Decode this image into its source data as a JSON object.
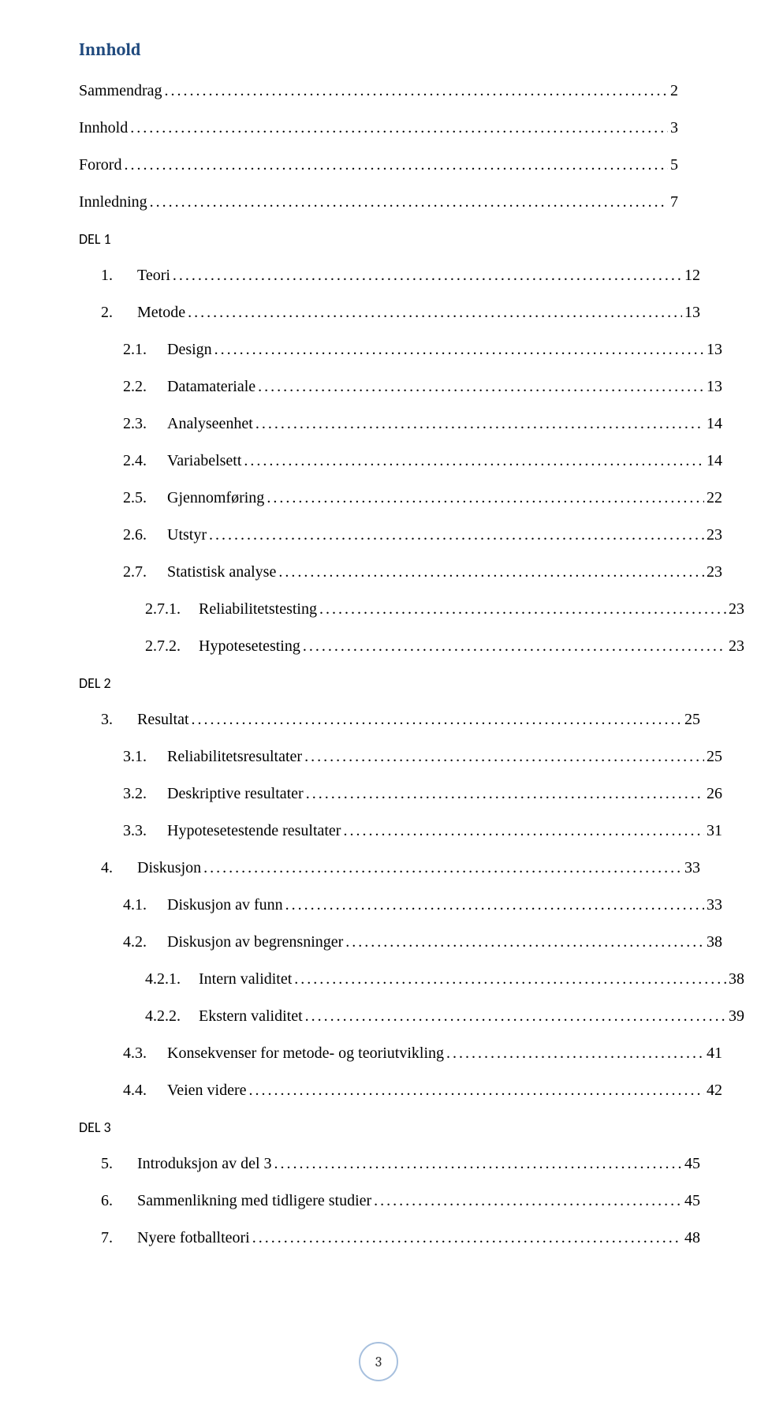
{
  "heading": "Innhold",
  "sections": {
    "del1": "DEL 1",
    "del2": "DEL 2",
    "del3": "DEL 3"
  },
  "top": [
    {
      "label": "Sammendrag",
      "page": "2"
    },
    {
      "label": "Innhold",
      "page": "3"
    },
    {
      "label": "Forord",
      "page": "5"
    },
    {
      "label": "Innledning",
      "page": "7"
    }
  ],
  "del1": {
    "i1": {
      "num": "1.",
      "label": "Teori",
      "page": "12"
    },
    "i2": {
      "num": "2.",
      "label": "Metode",
      "page": "13"
    },
    "i21": {
      "num": "2.1.",
      "label": "Design",
      "page": "13"
    },
    "i22": {
      "num": "2.2.",
      "label": "Datamateriale",
      "page": "13"
    },
    "i23": {
      "num": "2.3.",
      "label": "Analyseenhet",
      "page": "14"
    },
    "i24": {
      "num": "2.4.",
      "label": "Variabelsett",
      "page": "14"
    },
    "i25": {
      "num": "2.5.",
      "label": "Gjennomføring",
      "page": "22"
    },
    "i26": {
      "num": "2.6.",
      "label": "Utstyr",
      "page": "23"
    },
    "i27": {
      "num": "2.7.",
      "label": "Statistisk analyse",
      "page": "23"
    },
    "i271": {
      "num": "2.7.1.",
      "label": "Reliabilitetstesting",
      "page": "23"
    },
    "i272": {
      "num": "2.7.2.",
      "label": "Hypotesetesting",
      "page": "23"
    }
  },
  "del2": {
    "i3": {
      "num": "3.",
      "label": "Resultat",
      "page": "25"
    },
    "i31": {
      "num": "3.1.",
      "label": "Reliabilitetsresultater",
      "page": "25"
    },
    "i32": {
      "num": "3.2.",
      "label": "Deskriptive resultater",
      "page": "26"
    },
    "i33": {
      "num": "3.3.",
      "label": "Hypotesetestende resultater",
      "page": "31"
    },
    "i4": {
      "num": "4.",
      "label": "Diskusjon",
      "page": "33"
    },
    "i41": {
      "num": "4.1.",
      "label": "Diskusjon av funn",
      "page": "33"
    },
    "i42": {
      "num": "4.2.",
      "label": "Diskusjon av begrensninger",
      "page": "38"
    },
    "i421": {
      "num": "4.2.1.",
      "label": "Intern validitet",
      "page": "38"
    },
    "i422": {
      "num": "4.2.2.",
      "label": "Ekstern validitet",
      "page": "39"
    },
    "i43": {
      "num": "4.3.",
      "label": "Konsekvenser for metode- og teoriutvikling",
      "page": "41"
    },
    "i44": {
      "num": "4.4.",
      "label": "Veien videre",
      "page": "42"
    }
  },
  "del3": {
    "i5": {
      "num": "5.",
      "label": "Introduksjon av del 3",
      "page": "45"
    },
    "i6": {
      "num": "6.",
      "label": "Sammenlikning med tidligere studier",
      "page": "45"
    },
    "i7": {
      "num": "7.",
      "label": "Nyere fotballteori",
      "page": "48"
    }
  },
  "pageNumber": "3",
  "colors": {
    "heading": "#1f497d",
    "text": "#000000",
    "badgeBorder": "#a7c0de",
    "background": "#ffffff"
  },
  "typography": {
    "heading_fontsize_pt": 16,
    "body_fontsize_pt": 12,
    "heading_font": "Cambria",
    "body_font": "Times New Roman"
  }
}
